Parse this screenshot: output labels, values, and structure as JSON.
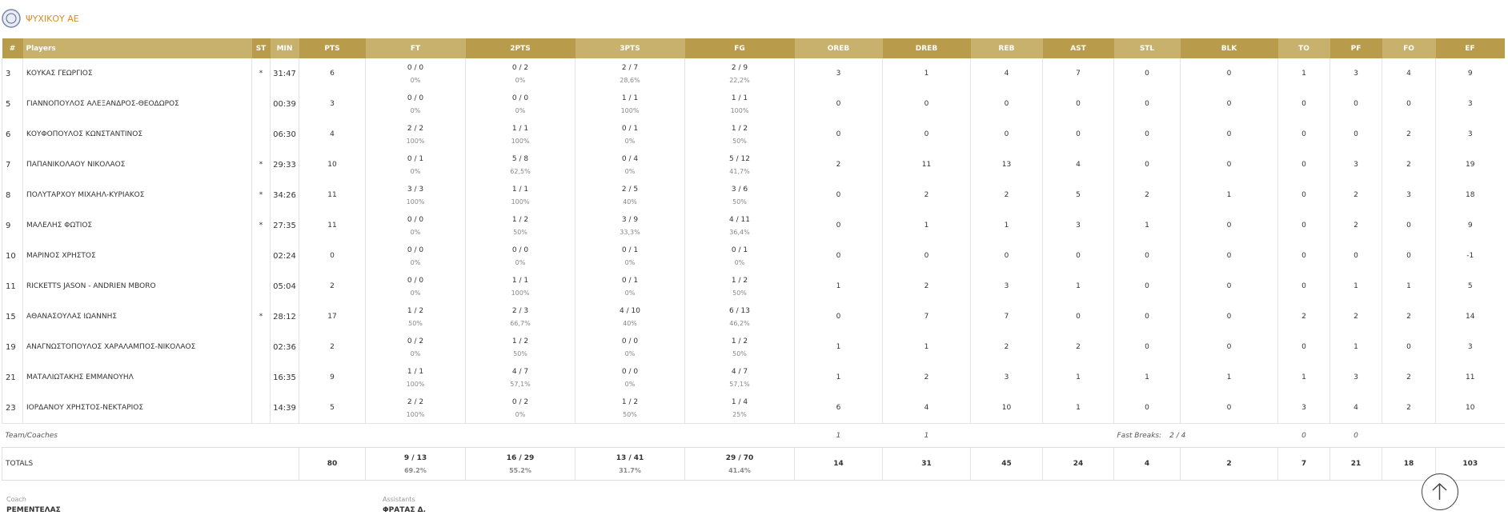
{
  "team": {
    "name": "ΨΥΧΙΚΟΥ ΑΕ"
  },
  "table": {
    "headers": [
      "#",
      "Players",
      "ST",
      "MIN",
      "PTS",
      "FT",
      "2PTS",
      "3PTS",
      "FG",
      "OREB",
      "DREB",
      "REB",
      "AST",
      "STL",
      "BLK",
      "TO",
      "PF",
      "FO",
      "EF"
    ],
    "rows": [
      [
        3,
        "ΚΟΥΚΑΣ ΓΕΩΡΓΙΟΣ",
        "*",
        "31:47",
        6,
        [
          "0 / 0",
          "0%"
        ],
        [
          "0 / 2",
          "0%"
        ],
        [
          "2 / 7",
          "28,6%"
        ],
        [
          "2 / 9",
          "22,2%"
        ],
        3,
        1,
        4,
        7,
        0,
        0,
        1,
        3,
        4,
        9
      ],
      [
        5,
        "ΓΙΑΝΝΟΠΟΥΛΟΣ ΑΛΕΞΑΝΔΡΟΣ-ΘΕΟΔΩΡΟΣ",
        null,
        "00:39",
        3,
        [
          "0 / 0",
          "0%"
        ],
        [
          "0 / 0",
          "0%"
        ],
        [
          "1 / 1",
          "100%"
        ],
        [
          "1 / 1",
          "100%"
        ],
        0,
        0,
        0,
        0,
        0,
        0,
        0,
        0,
        0,
        3
      ],
      [
        6,
        "ΚΟΥΦΟΠΟΥΛΟΣ ΚΩΝΣΤΑΝΤΙΝΟΣ",
        null,
        "06:30",
        4,
        [
          "2 / 2",
          "100%"
        ],
        [
          "1 / 1",
          "100%"
        ],
        [
          "0 / 1",
          "0%"
        ],
        [
          "1 / 2",
          "50%"
        ],
        0,
        0,
        0,
        0,
        0,
        0,
        0,
        0,
        2,
        3
      ],
      [
        7,
        "ΠΑΠΑΝΙΚΟΛΑΟΥ ΝΙΚΟΛΑΟΣ",
        "*",
        "29:33",
        10,
        [
          "0 / 1",
          "0%"
        ],
        [
          "5 / 8",
          "62,5%"
        ],
        [
          "0 / 4",
          "0%"
        ],
        [
          "5 / 12",
          "41,7%"
        ],
        2,
        11,
        13,
        4,
        0,
        0,
        0,
        3,
        2,
        19
      ],
      [
        8,
        "ΠΟΛΥΤΑΡΧΟΥ ΜΙΧΑΗΛ-ΚΥΡΙΑΚΟΣ",
        "*",
        "34:26",
        11,
        [
          "3 / 3",
          "100%"
        ],
        [
          "1 / 1",
          "100%"
        ],
        [
          "2 / 5",
          "40%"
        ],
        [
          "3 / 6",
          "50%"
        ],
        0,
        2,
        2,
        5,
        2,
        1,
        0,
        2,
        3,
        18
      ],
      [
        9,
        "ΜΑΛΕΛΗΣ ΦΩΤΙΟΣ",
        "*",
        "27:35",
        11,
        [
          "0 / 0",
          "0%"
        ],
        [
          "1 / 2",
          "50%"
        ],
        [
          "3 / 9",
          "33,3%"
        ],
        [
          "4 / 11",
          "36,4%"
        ],
        0,
        1,
        1,
        3,
        1,
        0,
        0,
        2,
        0,
        9
      ],
      [
        10,
        "ΜΑΡΙΝΟΣ ΧΡΗΣΤΟΣ",
        null,
        "02:24",
        0,
        [
          "0 / 0",
          "0%"
        ],
        [
          "0 / 0",
          "0%"
        ],
        [
          "0 / 1",
          "0%"
        ],
        [
          "0 / 1",
          "0%"
        ],
        0,
        0,
        0,
        0,
        0,
        0,
        0,
        0,
        0,
        -1
      ],
      [
        11,
        "RICKETTS JASON - ANDRIEN MBORO",
        null,
        "05:04",
        2,
        [
          "0 / 0",
          "0%"
        ],
        [
          "1 / 1",
          "100%"
        ],
        [
          "0 / 1",
          "0%"
        ],
        [
          "1 / 2",
          "50%"
        ],
        1,
        2,
        3,
        1,
        0,
        0,
        0,
        1,
        1,
        5
      ],
      [
        15,
        "ΑΘΑΝΑΣΟΥΛΑΣ ΙΩΑΝΝΗΣ",
        "*",
        "28:12",
        17,
        [
          "1 / 2",
          "50%"
        ],
        [
          "2 / 3",
          "66,7%"
        ],
        [
          "4 / 10",
          "40%"
        ],
        [
          "6 / 13",
          "46,2%"
        ],
        0,
        7,
        7,
        0,
        0,
        0,
        2,
        2,
        2,
        14
      ],
      [
        19,
        "ΑΝΑΓΝΩΣΤΟΠΟΥΛΟΣ ΧΑΡΑΛΑΜΠΟΣ-ΝΙΚΟΛΑΟΣ",
        null,
        "02:36",
        2,
        [
          "0 / 2",
          "0%"
        ],
        [
          "1 / 2",
          "50%"
        ],
        [
          "0 / 0",
          "0%"
        ],
        [
          "1 / 2",
          "50%"
        ],
        1,
        1,
        2,
        2,
        0,
        0,
        0,
        1,
        0,
        3
      ],
      [
        21,
        "ΜΑΤΑΛΙΩΤΑΚΗΣ ΕΜΜΑΝΟΥΗΛ",
        null,
        "16:35",
        9,
        [
          "1 / 1",
          "100%"
        ],
        [
          "4 / 7",
          "57,1%"
        ],
        [
          "0 / 0",
          "0%"
        ],
        [
          "4 / 7",
          "57,1%"
        ],
        1,
        2,
        3,
        1,
        1,
        1,
        1,
        3,
        2,
        11
      ],
      [
        23,
        "ΙΟΡΔΑΝΟΥ ΧΡΗΣΤΟΣ-ΝΕΚΤΑΡΙΟΣ",
        null,
        "14:39",
        5,
        [
          "2 / 2",
          "100%"
        ],
        [
          "0 / 2",
          "0%"
        ],
        [
          "1 / 2",
          "50%"
        ],
        [
          "1 / 4",
          "25%"
        ],
        6,
        4,
        10,
        1,
        0,
        0,
        3,
        4,
        2,
        10
      ]
    ],
    "team_row": {
      "label": "Team/Coaches",
      "oreb": 1,
      "dreb": 1,
      "fast_breaks_label": "Fast Breaks:",
      "fast_breaks": "2 / 4",
      "to": 0,
      "pf": 0
    },
    "totals": {
      "label": "TOTALS",
      "cells": [
        80,
        [
          "9 / 13",
          "69.2%"
        ],
        [
          "16 / 29",
          "55.2%"
        ],
        [
          "13 / 41",
          "31.7%"
        ],
        [
          "29 / 70",
          "41.4%"
        ],
        14,
        31,
        45,
        24,
        4,
        2,
        7,
        21,
        18,
        103
      ]
    }
  },
  "staff": {
    "coach_label": "Coach",
    "coach": "ΡΕΜΕΝΤΕΛΑΣ",
    "assistants_label": "Assistants",
    "assistants": "ΦΡΑΤΑΣ Δ."
  }
}
